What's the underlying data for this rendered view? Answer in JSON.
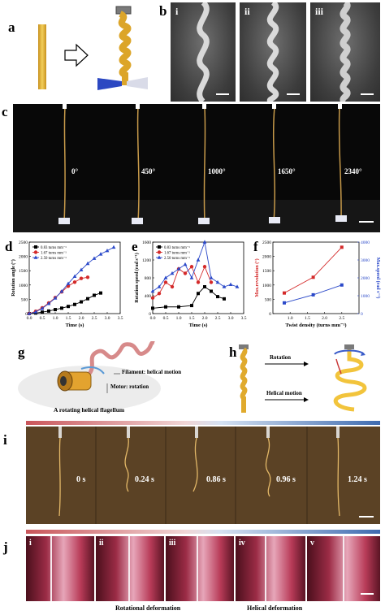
{
  "panel_labels": {
    "a": "a",
    "b": "b",
    "c": "c",
    "d": "d",
    "e": "e",
    "f": "f",
    "g": "g",
    "h": "h",
    "i": "i",
    "j": "j"
  },
  "panel_b": {
    "subpanels": [
      "i",
      "ii",
      "iii"
    ]
  },
  "panel_c": {
    "angles": [
      "0°",
      "450°",
      "1000°",
      "1650°",
      "2340°"
    ]
  },
  "panel_g": {
    "filament_label": "Filament: helical motion",
    "motor_label": "Motor: rotation",
    "caption": "A rotating helical flagellum"
  },
  "panel_h": {
    "rotation_label": "Rotation",
    "helical_label": "Helical motion"
  },
  "panel_i": {
    "times": [
      "0 s",
      "0.24 s",
      "0.86 s",
      "0.96 s",
      "1.24 s"
    ]
  },
  "panel_j": {
    "subpanels": [
      "i",
      "ii",
      "iii",
      "iv",
      "v"
    ],
    "rotational_label": "Rotational deformation",
    "helical_label": "Helical deformation"
  },
  "colors": {
    "black": "#000000",
    "red": "#d42a2a",
    "blue": "#2b49c9",
    "yellow": "#e8b23a"
  },
  "chart_data": [
    {
      "id": "d",
      "type": "line",
      "xlabel": "Time (s)",
      "ylabel": "Rotation angle (°)",
      "xlim": [
        0,
        3.5
      ],
      "ylim": [
        0,
        2500
      ],
      "xticks": [
        "0.0",
        "0.5",
        "1.0",
        "1.5",
        "2.0",
        "2.5",
        "3.0",
        "3.5"
      ],
      "yticks": [
        "0",
        "500",
        "1000",
        "1500",
        "2000",
        "2500"
      ],
      "series": [
        {
          "name": "0.83 turns mm⁻¹",
          "color": "#000000",
          "marker": "square",
          "x": [
            0,
            0.25,
            0.5,
            0.75,
            1.0,
            1.25,
            1.5,
            1.75,
            2.0,
            2.25,
            2.5,
            2.75
          ],
          "y": [
            0,
            20,
            50,
            90,
            140,
            190,
            250,
            320,
            410,
            520,
            640,
            720
          ]
        },
        {
          "name": "1.67 turns mm⁻¹",
          "color": "#d42a2a",
          "marker": "circle",
          "x": [
            0,
            0.25,
            0.5,
            0.75,
            1.0,
            1.25,
            1.5,
            1.75,
            2.0,
            2.25
          ],
          "y": [
            0,
            80,
            200,
            370,
            560,
            760,
            960,
            1100,
            1230,
            1270
          ]
        },
        {
          "name": "2.50 turns mm⁻¹",
          "color": "#2b49c9",
          "marker": "triangle",
          "x": [
            0,
            0.25,
            0.5,
            0.75,
            1.0,
            1.25,
            1.5,
            1.75,
            2.0,
            2.25,
            2.5,
            2.75,
            3.0,
            3.25
          ],
          "y": [
            0,
            60,
            180,
            350,
            540,
            780,
            1050,
            1300,
            1530,
            1750,
            1930,
            2080,
            2200,
            2320
          ]
        }
      ]
    },
    {
      "id": "e",
      "type": "line",
      "xlabel": "Time (s)",
      "ylabel": "Rotation speed (rad s⁻¹)",
      "xlim": [
        0,
        3.5
      ],
      "ylim": [
        0,
        1600
      ],
      "xticks": [
        "0.0",
        "0.5",
        "1.0",
        "1.5",
        "2.0",
        "2.5",
        "3.0",
        "3.5"
      ],
      "yticks": [
        "0",
        "400",
        "800",
        "1200",
        "1600"
      ],
      "series": [
        {
          "name": "0.83 turns mm⁻¹",
          "color": "#000000",
          "marker": "square",
          "x": [
            0,
            0.5,
            1.0,
            1.5,
            1.75,
            2.0,
            2.25,
            2.5,
            2.75
          ],
          "y": [
            120,
            150,
            150,
            180,
            450,
            600,
            500,
            380,
            330
          ]
        },
        {
          "name": "1.67 turns mm⁻¹",
          "color": "#d42a2a",
          "marker": "circle",
          "x": [
            0,
            0.25,
            0.5,
            0.75,
            1.0,
            1.25,
            1.5,
            1.75,
            2.0,
            2.25
          ],
          "y": [
            350,
            450,
            700,
            600,
            1000,
            900,
            1050,
            700,
            1050,
            700
          ]
        },
        {
          "name": "2.50 turns mm⁻¹",
          "color": "#2b49c9",
          "marker": "triangle",
          "x": [
            0,
            0.25,
            0.5,
            0.75,
            1.0,
            1.25,
            1.5,
            1.75,
            2.0,
            2.25,
            2.5,
            2.75,
            3.0,
            3.25
          ],
          "y": [
            500,
            600,
            800,
            900,
            1000,
            1100,
            800,
            1200,
            1600,
            800,
            700,
            600,
            650,
            600
          ]
        }
      ]
    },
    {
      "id": "f",
      "type": "line",
      "xlabel": "Twist density (turns mm⁻¹)",
      "ylabel": "Max.revolution (°)",
      "ylabel_right": "Max.speed (rad s⁻¹)",
      "xlim": [
        0.5,
        3.0
      ],
      "ylim": [
        0,
        2500
      ],
      "ylim_right": [
        0,
        4000
      ],
      "xticks": [
        "1.0",
        "1.5",
        "2.0",
        "2.5"
      ],
      "yticks": [
        "0",
        "500",
        "1000",
        "1500",
        "2000",
        "2500"
      ],
      "yticks_right": [
        "0",
        "1000",
        "2000",
        "3000",
        "4000"
      ],
      "series": [
        {
          "name": "Max.revolution",
          "color": "#d42a2a",
          "marker": "square",
          "axis": "left",
          "x": [
            0.83,
            1.67,
            2.5
          ],
          "y": [
            720,
            1270,
            2320
          ]
        },
        {
          "name": "Max.speed",
          "color": "#2b49c9",
          "marker": "square",
          "axis": "right",
          "x": [
            0.83,
            1.67,
            2.5
          ],
          "y": [
            600,
            1050,
            1600
          ]
        }
      ]
    }
  ]
}
